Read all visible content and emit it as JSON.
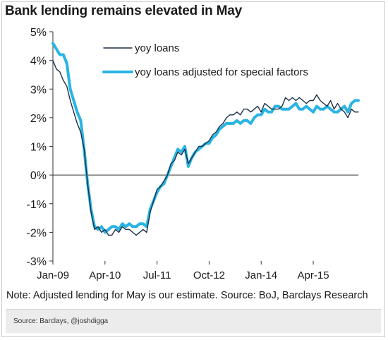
{
  "title": "Bank lending remains elevated in May",
  "note": "Note: Adjusted lending for May is our estimate. Source: BoJ, Barclays Research",
  "source": "Source: Barclays, @joshdigga",
  "chart_data": {
    "type": "line",
    "title": "Bank lending remains elevated in May",
    "xlabel": "",
    "ylabel": "",
    "xlim": [
      "2009-01",
      "2016-05"
    ],
    "ylim": [
      -3,
      5
    ],
    "y_ticks": [
      5,
      4,
      3,
      2,
      1,
      0,
      -1,
      -2,
      -3
    ],
    "y_tick_labels": [
      "5%",
      "4%",
      "3%",
      "2%",
      "1%",
      "0%",
      "-1%",
      "-2%",
      "-3%"
    ],
    "x_ticks": [
      "2009-01",
      "2010-04",
      "2011-07",
      "2012-10",
      "2014-01",
      "2015-04"
    ],
    "x_tick_labels": [
      "Jan-09",
      "Apr-10",
      "Jul-11",
      "Oct-12",
      "Jan-14",
      "Apr-15"
    ],
    "grid": false,
    "legend_position": "top-center",
    "series": [
      {
        "name": "yoy loans",
        "color": "#1b3147",
        "points": [
          [
            "2009-01",
            4.0
          ],
          [
            "2009-02",
            3.7
          ],
          [
            "2009-03",
            3.6
          ],
          [
            "2009-04",
            3.3
          ],
          [
            "2009-05",
            3.1
          ],
          [
            "2009-06",
            2.6
          ],
          [
            "2009-07",
            2.2
          ],
          [
            "2009-08",
            1.8
          ],
          [
            "2009-09",
            1.5
          ],
          [
            "2009-10",
            0.9
          ],
          [
            "2009-11",
            -0.3
          ],
          [
            "2009-12",
            -1.3
          ],
          [
            "2010-01",
            -1.9
          ],
          [
            "2010-02",
            -1.8
          ],
          [
            "2010-03",
            -2.0
          ],
          [
            "2010-04",
            -1.9
          ],
          [
            "2010-05",
            -2.1
          ],
          [
            "2010-06",
            -2.1
          ],
          [
            "2010-07",
            -1.9
          ],
          [
            "2010-08",
            -2.0
          ],
          [
            "2010-09",
            -1.8
          ],
          [
            "2010-10",
            -1.9
          ],
          [
            "2010-11",
            -1.9
          ],
          [
            "2010-12",
            -2.0
          ],
          [
            "2011-01",
            -2.1
          ],
          [
            "2011-02",
            -2.0
          ],
          [
            "2011-03",
            -1.9
          ],
          [
            "2011-04",
            -2.0
          ],
          [
            "2011-05",
            -1.3
          ],
          [
            "2011-06",
            -0.9
          ],
          [
            "2011-07",
            -0.5
          ],
          [
            "2011-08",
            -0.4
          ],
          [
            "2011-09",
            -0.2
          ],
          [
            "2011-10",
            0.0
          ],
          [
            "2011-11",
            0.4
          ],
          [
            "2011-12",
            0.5
          ],
          [
            "2012-01",
            0.8
          ],
          [
            "2012-02",
            0.7
          ],
          [
            "2012-03",
            0.9
          ],
          [
            "2012-04",
            0.4
          ],
          [
            "2012-05",
            0.6
          ],
          [
            "2012-06",
            0.8
          ],
          [
            "2012-07",
            1.0
          ],
          [
            "2012-08",
            1.0
          ],
          [
            "2012-09",
            1.1
          ],
          [
            "2012-10",
            1.2
          ],
          [
            "2012-11",
            1.4
          ],
          [
            "2012-12",
            1.5
          ],
          [
            "2013-01",
            1.7
          ],
          [
            "2013-02",
            1.8
          ],
          [
            "2013-03",
            2.0
          ],
          [
            "2013-04",
            2.1
          ],
          [
            "2013-05",
            2.1
          ],
          [
            "2013-06",
            2.2
          ],
          [
            "2013-07",
            2.1
          ],
          [
            "2013-08",
            2.3
          ],
          [
            "2013-09",
            2.3
          ],
          [
            "2013-10",
            2.2
          ],
          [
            "2013-11",
            2.3
          ],
          [
            "2013-12",
            2.4
          ],
          [
            "2014-01",
            2.2
          ],
          [
            "2014-02",
            2.5
          ],
          [
            "2014-03",
            2.4
          ],
          [
            "2014-04",
            2.3
          ],
          [
            "2014-05",
            2.3
          ],
          [
            "2014-06",
            2.3
          ],
          [
            "2014-07",
            2.4
          ],
          [
            "2014-08",
            2.7
          ],
          [
            "2014-09",
            2.6
          ],
          [
            "2014-10",
            2.7
          ],
          [
            "2014-11",
            2.6
          ],
          [
            "2014-12",
            2.7
          ],
          [
            "2015-01",
            2.6
          ],
          [
            "2015-02",
            2.5
          ],
          [
            "2015-03",
            2.6
          ],
          [
            "2015-04",
            2.6
          ],
          [
            "2015-05",
            2.8
          ],
          [
            "2015-06",
            2.6
          ],
          [
            "2015-07",
            2.5
          ],
          [
            "2015-08",
            2.4
          ],
          [
            "2015-09",
            2.6
          ],
          [
            "2015-10",
            2.3
          ],
          [
            "2015-11",
            2.5
          ],
          [
            "2015-12",
            2.3
          ],
          [
            "2016-01",
            2.2
          ],
          [
            "2016-02",
            2.0
          ],
          [
            "2016-03",
            2.3
          ],
          [
            "2016-04",
            2.2
          ],
          [
            "2016-05",
            2.2
          ]
        ]
      },
      {
        "name": "yoy loans adjusted for special factors",
        "color": "#29b4e3",
        "points": [
          [
            "2009-01",
            4.6
          ],
          [
            "2009-02",
            4.4
          ],
          [
            "2009-03",
            4.2
          ],
          [
            "2009-04",
            4.2
          ],
          [
            "2009-05",
            3.9
          ],
          [
            "2009-06",
            3.0
          ],
          [
            "2009-07",
            2.6
          ],
          [
            "2009-08",
            2.2
          ],
          [
            "2009-09",
            1.9
          ],
          [
            "2009-10",
            0.9
          ],
          [
            "2009-11",
            -0.3
          ],
          [
            "2009-12",
            -1.2
          ],
          [
            "2010-01",
            -1.8
          ],
          [
            "2010-02",
            -1.9
          ],
          [
            "2010-03",
            -1.8
          ],
          [
            "2010-04",
            -2.0
          ],
          [
            "2010-05",
            -1.9
          ],
          [
            "2010-06",
            -1.8
          ],
          [
            "2010-07",
            -1.8
          ],
          [
            "2010-08",
            -1.9
          ],
          [
            "2010-09",
            -1.7
          ],
          [
            "2010-10",
            -1.8
          ],
          [
            "2010-11",
            -1.7
          ],
          [
            "2010-12",
            -1.8
          ],
          [
            "2011-01",
            -1.8
          ],
          [
            "2011-02",
            -1.7
          ],
          [
            "2011-03",
            -1.7
          ],
          [
            "2011-04",
            -1.8
          ],
          [
            "2011-05",
            -1.2
          ],
          [
            "2011-06",
            -0.9
          ],
          [
            "2011-07",
            -0.6
          ],
          [
            "2011-08",
            -0.4
          ],
          [
            "2011-09",
            -0.3
          ],
          [
            "2011-10",
            0.0
          ],
          [
            "2011-11",
            0.3
          ],
          [
            "2011-12",
            0.6
          ],
          [
            "2012-01",
            0.9
          ],
          [
            "2012-02",
            0.8
          ],
          [
            "2012-03",
            1.0
          ],
          [
            "2012-04",
            0.3
          ],
          [
            "2012-05",
            0.6
          ],
          [
            "2012-06",
            0.8
          ],
          [
            "2012-07",
            0.9
          ],
          [
            "2012-08",
            1.0
          ],
          [
            "2012-09",
            1.1
          ],
          [
            "2012-10",
            1.1
          ],
          [
            "2012-11",
            1.3
          ],
          [
            "2012-12",
            1.4
          ],
          [
            "2013-01",
            1.6
          ],
          [
            "2013-02",
            1.7
          ],
          [
            "2013-03",
            1.8
          ],
          [
            "2013-04",
            1.8
          ],
          [
            "2013-05",
            1.8
          ],
          [
            "2013-06",
            1.9
          ],
          [
            "2013-07",
            1.8
          ],
          [
            "2013-08",
            1.9
          ],
          [
            "2013-09",
            1.9
          ],
          [
            "2013-10",
            1.8
          ],
          [
            "2013-11",
            2.0
          ],
          [
            "2013-12",
            2.1
          ],
          [
            "2014-01",
            2.1
          ],
          [
            "2014-02",
            2.3
          ],
          [
            "2014-03",
            2.2
          ],
          [
            "2014-04",
            2.2
          ],
          [
            "2014-05",
            2.4
          ],
          [
            "2014-06",
            2.4
          ],
          [
            "2014-07",
            2.3
          ],
          [
            "2014-08",
            2.3
          ],
          [
            "2014-09",
            2.3
          ],
          [
            "2014-10",
            2.4
          ],
          [
            "2014-11",
            2.5
          ],
          [
            "2014-12",
            2.3
          ],
          [
            "2015-01",
            2.3
          ],
          [
            "2015-02",
            2.4
          ],
          [
            "2015-03",
            2.3
          ],
          [
            "2015-04",
            2.2
          ],
          [
            "2015-05",
            2.4
          ],
          [
            "2015-06",
            2.3
          ],
          [
            "2015-07",
            2.3
          ],
          [
            "2015-08",
            2.4
          ],
          [
            "2015-09",
            2.3
          ],
          [
            "2015-10",
            2.2
          ],
          [
            "2015-11",
            2.2
          ],
          [
            "2015-12",
            2.3
          ],
          [
            "2016-01",
            2.4
          ],
          [
            "2016-02",
            2.2
          ],
          [
            "2016-03",
            2.5
          ],
          [
            "2016-04",
            2.6
          ],
          [
            "2016-05",
            2.6
          ]
        ]
      }
    ]
  }
}
